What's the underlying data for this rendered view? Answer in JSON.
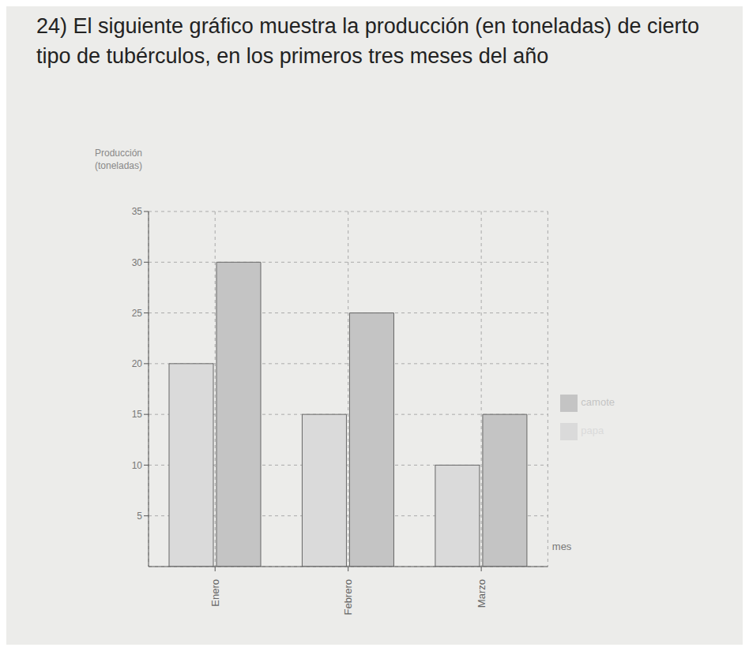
{
  "chart_data": {
    "type": "bar",
    "title": "24) El siguiente gráfico muestra la producción (en toneladas) de cierto tipo de tubérculos, en los primeros tres meses del año",
    "y_label": "Producción (toneladas)",
    "x_label": "mes",
    "categories": [
      "Enero",
      "Febrero",
      "Marzo"
    ],
    "series": [
      {
        "name": "papa",
        "color": "#dadada",
        "values": [
          20,
          15,
          10
        ]
      },
      {
        "name": "camote",
        "color": "#c4c4c4",
        "values": [
          30,
          25,
          15
        ]
      }
    ],
    "ylim": [
      0,
      35
    ],
    "yticks": [
      5,
      10,
      15,
      20,
      25,
      30,
      35
    ],
    "grid": true,
    "legend": "right"
  }
}
